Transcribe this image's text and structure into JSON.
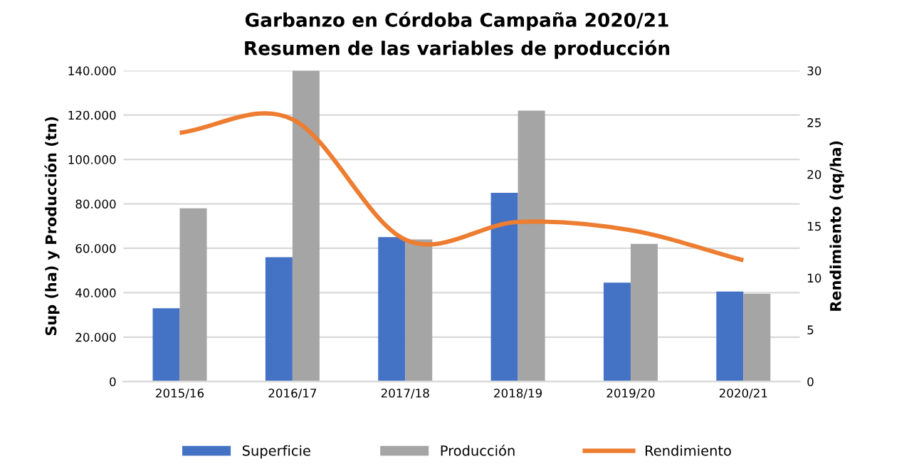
{
  "chart_data": {
    "type": "bar",
    "title": "Garbanzo en Córdoba Campaña 2020/21",
    "subtitle": "Resumen de las variables de producción",
    "ylabel": "Sup (ha) y Producción (tn)",
    "y2label": "Rendimiento (qq/ha)",
    "categories": [
      "2015/16",
      "2016/17",
      "2017/18",
      "2018/19",
      "2019/20",
      "2020/21"
    ],
    "series": [
      {
        "name": "Superficie",
        "color": "#4472c4",
        "values": [
          33000,
          56000,
          65000,
          85000,
          44500,
          40500
        ]
      },
      {
        "name": "Producción",
        "color": "#a5a5a5",
        "values": [
          78000,
          140000,
          64000,
          122000,
          62000,
          39500
        ]
      },
      {
        "name": "Rendimiento",
        "type": "line",
        "axis": "y2",
        "color": "#ed7d31",
        "values": [
          24.0,
          25.3,
          13.7,
          15.4,
          14.6,
          11.7
        ]
      }
    ],
    "ylim": [
      0,
      140000
    ],
    "yticks": [
      {
        "value": 0,
        "label": "0"
      },
      {
        "value": 20000,
        "label": "20.000"
      },
      {
        "value": 40000,
        "label": "40.000"
      },
      {
        "value": 60000,
        "label": "60.000"
      },
      {
        "value": 80000,
        "label": "80.000"
      },
      {
        "value": 100000,
        "label": "100.000"
      },
      {
        "value": 120000,
        "label": "120.000"
      },
      {
        "value": 140000,
        "label": "140.000"
      }
    ],
    "y2lim": [
      0,
      30
    ],
    "y2ticks": [
      0,
      5,
      10,
      15,
      20,
      25,
      30
    ],
    "grid": "y",
    "legend": "bottom",
    "marker": "none"
  }
}
